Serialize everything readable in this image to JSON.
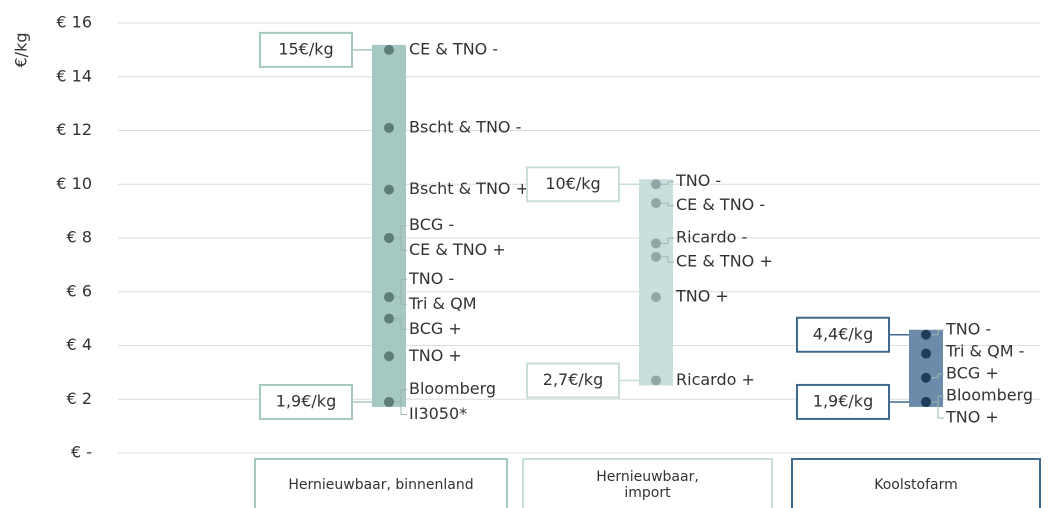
{
  "chart_data": {
    "type": "range_dot",
    "ylabel": "€/kg",
    "ylim": [
      0,
      16
    ],
    "yticks": [
      {
        "value": 0,
        "label": "€ -"
      },
      {
        "value": 2,
        "label": "€ 2"
      },
      {
        "value": 4,
        "label": "€ 4"
      },
      {
        "value": 6,
        "label": "€ 6"
      },
      {
        "value": 8,
        "label": "€ 8"
      },
      {
        "value": 10,
        "label": "€ 10"
      },
      {
        "value": 12,
        "label": "€ 12"
      },
      {
        "value": 14,
        "label": "€ 14"
      },
      {
        "value": 16,
        "label": "€ 16"
      }
    ],
    "grid": true,
    "groups": [
      {
        "name": "Hernieuwbaar, binnenland",
        "color": "#a5c8c3",
        "dot_color": "#5e7d78",
        "border_color": "#a5c8c3",
        "range": [
          1.9,
          15
        ],
        "range_labels": [
          "1,9€/kg",
          "15€/kg"
        ],
        "labels": [
          "CE & TNO -",
          "Bscht & TNO -",
          "Bscht & TNO +",
          "BCG -",
          "CE & TNO +",
          "TNO -",
          "Tri & QM",
          "BCG +",
          "TNO +",
          "Bloomberg",
          "II3050*"
        ],
        "values": [
          15,
          12.1,
          9.8,
          8.0,
          8.0,
          5.8,
          5.8,
          5.0,
          3.6,
          1.9,
          1.9
        ]
      },
      {
        "name": "Hernieuwbaar, import",
        "color": "#c9dfdc",
        "dot_color": "#8fa8a5",
        "border_color": "#c9dfdc",
        "range": [
          2.7,
          10
        ],
        "range_labels": [
          "2,7€/kg",
          "10€/kg"
        ],
        "labels": [
          "TNO -",
          "CE & TNO -",
          "Ricardo -",
          "CE & TNO +",
          "TNO +",
          "Ricardo +"
        ],
        "values": [
          10,
          9.3,
          7.8,
          7.3,
          5.8,
          2.7
        ]
      },
      {
        "name": "Koolstofarm",
        "color": "#6c8bab",
        "dot_color": "#1e3d5c",
        "border_color": "#3e6a90",
        "range": [
          1.9,
          4.4
        ],
        "range_labels": [
          "1,9€/kg",
          "4,4€/kg"
        ],
        "labels": [
          "TNO -",
          "Tri & QM -",
          "BCG +",
          "Bloomberg",
          "TNO +"
        ],
        "values": [
          4.4,
          3.7,
          2.8,
          1.9,
          1.9
        ]
      }
    ]
  }
}
